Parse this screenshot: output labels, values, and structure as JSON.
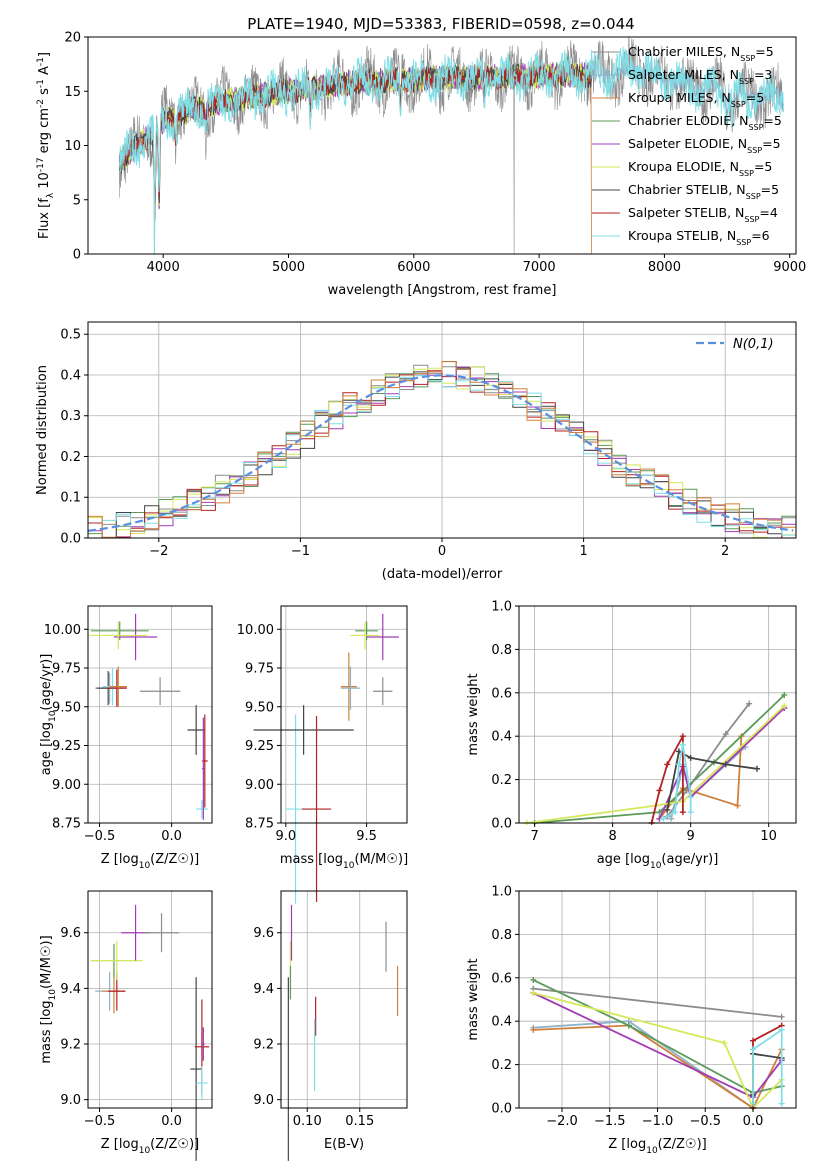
{
  "figure_title": "PLATE=1940, MJD=53383, FIBERID=0598, z=0.044",
  "series_styles": [
    {
      "name": "Chabrier MILES, N_SSP=5",
      "color": "#8c8c8c"
    },
    {
      "name": "Salpeter MILES, N_SSP=3",
      "color": "#8fb4c9"
    },
    {
      "name": "Kroupa MILES, N_SSP=5",
      "color": "#d0803a"
    },
    {
      "name": "Chabrier ELODIE, N_SSP=5",
      "color": "#5a9a5a"
    },
    {
      "name": "Salpeter ELODIE, N_SSP=5",
      "color": "#a23cb4"
    },
    {
      "name": "Kroupa ELODIE, N_SSP=5",
      "color": "#d4e85a"
    },
    {
      "name": "Chabrier STELIB, N_SSP=5",
      "color": "#444444"
    },
    {
      "name": "Salpeter STELIB, N_SSP=4",
      "color": "#b22222"
    },
    {
      "name": "Kroupa STELIB, N_SSP=6",
      "color": "#80dfe6"
    }
  ],
  "chart_data": [
    {
      "id": "spectrum",
      "type": "line",
      "xlabel": "wavelength [Angstrom, rest frame]",
      "ylabel": "Flux [f_λ 10^-17 erg cm^-2 s^-1 A^-1]",
      "xlim": [
        3400,
        9050
      ],
      "ylim": [
        0,
        20
      ],
      "xticks": [
        4000,
        5000,
        6000,
        7000,
        8000,
        9000
      ],
      "yticks": [
        0,
        5,
        10,
        15,
        20
      ],
      "legend": [
        "Chabrier MILES, N_SSP=5",
        "Salpeter MILES, N_SSP=3",
        "Kroupa MILES, N_SSP=5",
        "Chabrier ELODIE, N_SSP=5",
        "Salpeter ELODIE, N_SSP=5",
        "Kroupa ELODIE, N_SSP=5",
        "Chabrier STELIB, N_SSP=5",
        "Salpeter STELIB, N_SSP=4",
        "Kroupa STELIB, N_SSP=6"
      ],
      "legend_position": "upper-right",
      "continuum_x": [
        3650,
        3750,
        3900,
        4000,
        4200,
        4500,
        5000,
        5500,
        6000,
        6500,
        7000,
        7400,
        7800,
        8200,
        8600,
        8900
      ],
      "continuum_y": [
        8.5,
        9.5,
        11.0,
        12.3,
        13.2,
        14.1,
        15.0,
        15.8,
        16.1,
        16.3,
        16.4,
        16.5,
        16.9,
        15.5,
        14.7,
        14.5
      ],
      "model_range": [
        3650,
        7420
      ],
      "observed_range": [
        3650,
        8950
      ],
      "absorption_features": [
        {
          "x": 3933,
          "depth": 8.0
        },
        {
          "x": 3968,
          "depth": 7.0
        },
        {
          "x": 4101,
          "depth": 2.5
        },
        {
          "x": 4340,
          "depth": 2.0
        },
        {
          "x": 5175,
          "depth": 3.0
        },
        {
          "x": 5893,
          "depth": 2.5
        },
        {
          "x": 6563,
          "depth": 2.0
        },
        {
          "x": 8498,
          "depth": 2.0
        },
        {
          "x": 8542,
          "depth": 2.5
        },
        {
          "x": 8662,
          "depth": 2.2
        }
      ],
      "drops_to_zero": [
        3930,
        6800,
        7420
      ],
      "grid": false
    },
    {
      "id": "residuals",
      "type": "histogram",
      "xlabel": "(data-model)/error",
      "ylabel": "Normed distribution",
      "xlim": [
        -2.5,
        2.5
      ],
      "ylim": [
        0,
        0.53
      ],
      "xticks": [
        -2,
        -1,
        0,
        1,
        2
      ],
      "yticks": [
        0.0,
        0.1,
        0.2,
        0.3,
        0.4,
        0.5
      ],
      "reference_curve": "N(0,1)",
      "legend_position": "upper-right",
      "grid": true,
      "bin_width": 0.1
    },
    {
      "id": "age_vs_Z",
      "type": "scatter",
      "xlabel": "Z [log10(Z/Z☉)]",
      "ylabel": "age [log10(age/yr)]",
      "xlim": [
        -0.58,
        0.28
      ],
      "ylim": [
        8.75,
        10.15
      ],
      "xticks": [
        -0.5,
        0.0
      ],
      "yticks": [
        8.75,
        9.0,
        9.25,
        9.5,
        9.75,
        10.0
      ],
      "grid": true,
      "points": [
        {
          "series": 1,
          "x": -0.43,
          "y": 9.62,
          "xerr": 0.1,
          "yerr": 0.1
        },
        {
          "series": 6,
          "x": -0.44,
          "y": 9.62,
          "xerr": 0.08,
          "yerr": 0.11
        },
        {
          "series": 8,
          "x": -0.41,
          "y": 9.63,
          "xerr": 0.07,
          "yerr": 0.12
        },
        {
          "series": 7,
          "x": -0.38,
          "y": 9.62,
          "xerr": 0.07,
          "yerr": 0.12
        },
        {
          "series": 2,
          "x": -0.37,
          "y": 9.63,
          "xerr": 0.06,
          "yerr": 0.13
        },
        {
          "series": 3,
          "x": -0.36,
          "y": 9.99,
          "xerr": 0.2,
          "yerr": 0.06
        },
        {
          "series": 4,
          "x": -0.25,
          "y": 9.95,
          "xerr": 0.15,
          "yerr": 0.15
        },
        {
          "series": 5,
          "x": -0.37,
          "y": 9.96,
          "xerr": 0.2,
          "yerr": 0.09
        },
        {
          "series": 0,
          "x": -0.08,
          "y": 9.6,
          "xerr": 0.14,
          "yerr": 0.09
        },
        {
          "series": 6,
          "x": 0.17,
          "y": 9.35,
          "xerr": 0.06,
          "yerr": 0.16
        },
        {
          "series": 7,
          "x": 0.23,
          "y": 9.15,
          "xerr": 0.02,
          "yerr": 0.3
        },
        {
          "series": 8,
          "x": 0.21,
          "y": 8.84,
          "xerr": 0.04,
          "yerr": 0.06
        },
        {
          "series": 4,
          "x": 0.22,
          "y": 9.1,
          "xerr": 0.01,
          "yerr": 0.33
        }
      ]
    },
    {
      "id": "age_vs_mass",
      "type": "scatter",
      "xlabel": "mass [log10(M/M☉)]",
      "ylabel": "",
      "xlim": [
        8.97,
        9.75
      ],
      "ylim": [
        8.75,
        10.15
      ],
      "xticks": [
        9.0,
        9.5
      ],
      "yticks": [
        8.75,
        9.0,
        9.25,
        9.5,
        9.75,
        10.0
      ],
      "grid": true,
      "points": [
        {
          "series": 8,
          "x": 9.06,
          "y": 8.84,
          "xerr": 0.06,
          "yerr": 0.61
        },
        {
          "series": 6,
          "x": 9.11,
          "y": 9.35,
          "xerr": 0.31,
          "yerr": 0.16
        },
        {
          "series": 7,
          "x": 9.19,
          "y": 8.84,
          "xerr": 0.09,
          "yerr": 0.6
        },
        {
          "series": 2,
          "x": 9.39,
          "y": 9.63,
          "xerr": 0.05,
          "yerr": 0.22
        },
        {
          "series": 1,
          "x": 9.4,
          "y": 9.62,
          "xerr": 0.06,
          "yerr": 0.14
        },
        {
          "series": 3,
          "x": 9.5,
          "y": 9.99,
          "xerr": 0.07,
          "yerr": 0.06
        },
        {
          "series": 5,
          "x": 9.49,
          "y": 9.96,
          "xerr": 0.09,
          "yerr": 0.09
        },
        {
          "series": 4,
          "x": 9.6,
          "y": 9.95,
          "xerr": 0.1,
          "yerr": 0.15
        },
        {
          "series": 0,
          "x": 9.6,
          "y": 9.6,
          "xerr": 0.06,
          "yerr": 0.09
        }
      ]
    },
    {
      "id": "weight_vs_age",
      "type": "line",
      "xlabel": "age [log10(age/yr)]",
      "ylabel": "mass weight",
      "xlim": [
        6.8,
        10.35
      ],
      "ylim": [
        0,
        1
      ],
      "xticks": [
        7,
        8,
        9,
        10
      ],
      "yticks": [
        0.0,
        0.2,
        0.4,
        0.6,
        0.8,
        1.0
      ],
      "grid": true,
      "series": [
        {
          "series": 0,
          "x": [
            8.7,
            8.95,
            9.45,
            9.75
          ],
          "y": [
            0.03,
            0.15,
            0.41,
            0.55
          ]
        },
        {
          "series": 1,
          "x": [
            8.75,
            8.9,
            9.0,
            9.7
          ],
          "y": [
            0.02,
            0.27,
            0.12,
            0.35
          ]
        },
        {
          "series": 2,
          "x": [
            8.6,
            8.9,
            9.6,
            9.65
          ],
          "y": [
            0.02,
            0.16,
            0.08,
            0.4
          ]
        },
        {
          "series": 3,
          "x": [
            7.0,
            8.6,
            9.3,
            10.2
          ],
          "y": [
            0.0,
            0.05,
            0.28,
            0.59
          ]
        },
        {
          "series": 4,
          "x": [
            8.6,
            8.9,
            9.0,
            10.2
          ],
          "y": [
            0.02,
            0.26,
            0.12,
            0.53
          ]
        },
        {
          "series": 5,
          "x": [
            6.9,
            8.55,
            8.9,
            10.2
          ],
          "y": [
            0.0,
            0.08,
            0.1,
            0.54
          ]
        },
        {
          "series": 6,
          "x": [
            8.7,
            8.85,
            9.0,
            9.45,
            9.85
          ],
          "y": [
            0.06,
            0.33,
            0.3,
            0.27,
            0.25
          ]
        },
        {
          "series": 7,
          "x": [
            8.5,
            8.6,
            8.7,
            8.9,
            8.9
          ],
          "y": [
            0.0,
            0.15,
            0.27,
            0.4,
            0.05
          ]
        },
        {
          "series": 8,
          "x": [
            8.65,
            8.8,
            8.85,
            8.9,
            9.0,
            9.0
          ],
          "y": [
            0.02,
            0.05,
            0.27,
            0.36,
            0.12,
            0.05
          ]
        }
      ]
    },
    {
      "id": "mass_vs_Z",
      "type": "scatter",
      "xlabel": "Z [log10(Z/Z☉)]",
      "ylabel": "mass [log10(M/M☉)]",
      "xlim": [
        -0.58,
        0.28
      ],
      "ylim": [
        8.97,
        9.75
      ],
      "xticks": [
        -0.5,
        0.0
      ],
      "yticks": [
        9.0,
        9.2,
        9.4,
        9.6
      ],
      "grid": true,
      "points": [
        {
          "series": 1,
          "x": -0.43,
          "y": 9.39,
          "xerr": 0.1,
          "yerr": 0.07
        },
        {
          "series": 2,
          "x": -0.4,
          "y": 9.39,
          "xerr": 0.08,
          "yerr": 0.08
        },
        {
          "series": 7,
          "x": -0.38,
          "y": 9.39,
          "xerr": 0.06,
          "yerr": 0.07
        },
        {
          "series": 3,
          "x": -0.4,
          "y": 9.5,
          "xerr": 0.16,
          "yerr": 0.06
        },
        {
          "series": 5,
          "x": -0.38,
          "y": 9.5,
          "xerr": 0.18,
          "yerr": 0.07
        },
        {
          "series": 4,
          "x": -0.25,
          "y": 9.6,
          "xerr": 0.1,
          "yerr": 0.1
        },
        {
          "series": 0,
          "x": -0.07,
          "y": 9.6,
          "xerr": 0.12,
          "yerr": 0.07
        },
        {
          "series": 6,
          "x": 0.17,
          "y": 9.11,
          "xerr": 0.04,
          "yerr": 0.33
        },
        {
          "series": 7,
          "x": 0.21,
          "y": 9.19,
          "xerr": 0.05,
          "yerr": 0.17
        },
        {
          "series": 8,
          "x": 0.21,
          "y": 9.06,
          "xerr": 0.04,
          "yerr": 0.06
        },
        {
          "series": 4,
          "x": 0.22,
          "y": 9.2,
          "xerr": 0.01,
          "yerr": 0.06
        }
      ]
    },
    {
      "id": "mass_vs_ebv",
      "type": "scatter",
      "xlabel": "E(B-V)",
      "ylabel": "",
      "xlim": [
        0.075,
        0.195
      ],
      "ylim": [
        8.97,
        9.75
      ],
      "xticks": [
        0.1,
        0.15
      ],
      "yticks": [
        9.0,
        9.2,
        9.4,
        9.6
      ],
      "grid": true,
      "points": [
        {
          "series": 6,
          "x": 0.082,
          "y": 9.11,
          "xerr": 0,
          "yerr": 0.33
        },
        {
          "series": 5,
          "x": 0.084,
          "y": 9.5,
          "xerr": 0,
          "yerr": 0.07
        },
        {
          "series": 4,
          "x": 0.085,
          "y": 9.6,
          "xerr": 0,
          "yerr": 0.1
        },
        {
          "series": 3,
          "x": 0.084,
          "y": 9.42,
          "xerr": 0,
          "yerr": 0.06
        },
        {
          "series": 7,
          "x": 0.108,
          "y": 9.3,
          "xerr": 0,
          "yerr": 0.07
        },
        {
          "series": 8,
          "x": 0.107,
          "y": 9.16,
          "xerr": 0,
          "yerr": 0.13
        },
        {
          "series": 0,
          "x": 0.175,
          "y": 9.55,
          "xerr": 0,
          "yerr": 0.09
        },
        {
          "series": 2,
          "x": 0.186,
          "y": 9.39,
          "xerr": 0,
          "yerr": 0.09
        }
      ]
    },
    {
      "id": "weight_vs_Z",
      "type": "line",
      "xlabel": "Z [log10(Z/Z☉)]",
      "ylabel": "mass weight",
      "xlim": [
        -2.45,
        0.45
      ],
      "ylim": [
        0,
        1
      ],
      "xticks": [
        -2.0,
        -1.5,
        -1.0,
        -0.5,
        0.0
      ],
      "yticks": [
        0.0,
        0.2,
        0.4,
        0.6,
        0.8,
        1.0
      ],
      "grid": true,
      "series": [
        {
          "series": 0,
          "x": [
            -2.3,
            0.3
          ],
          "y": [
            0.55,
            0.42
          ]
        },
        {
          "series": 1,
          "x": [
            -2.3,
            -1.3,
            0.0
          ],
          "y": [
            0.37,
            0.4,
            0.0
          ]
        },
        {
          "series": 2,
          "x": [
            -2.3,
            -1.3,
            0.0,
            0.3
          ],
          "y": [
            0.36,
            0.38,
            0.0,
            0.27
          ]
        },
        {
          "series": 3,
          "x": [
            -2.3,
            -1.3,
            0.0,
            0.3
          ],
          "y": [
            0.59,
            0.38,
            0.07,
            0.1
          ]
        },
        {
          "series": 4,
          "x": [
            -2.3,
            0.0,
            0.3
          ],
          "y": [
            0.53,
            0.05,
            0.22
          ]
        },
        {
          "series": 5,
          "x": [
            -2.3,
            -0.3,
            0.0,
            0.3
          ],
          "y": [
            0.53,
            0.3,
            0.0,
            0.13
          ]
        },
        {
          "series": 6,
          "x": [
            0.0,
            0.0,
            0.3
          ],
          "y": [
            0.06,
            0.25,
            0.23
          ]
        },
        {
          "series": 7,
          "x": [
            0.0,
            0.0,
            0.3
          ],
          "y": [
            0.0,
            0.31,
            0.38
          ]
        },
        {
          "series": 8,
          "x": [
            0.0,
            0.0,
            0.3,
            0.3
          ],
          "y": [
            0.02,
            0.27,
            0.36,
            0.02
          ]
        }
      ]
    }
  ]
}
